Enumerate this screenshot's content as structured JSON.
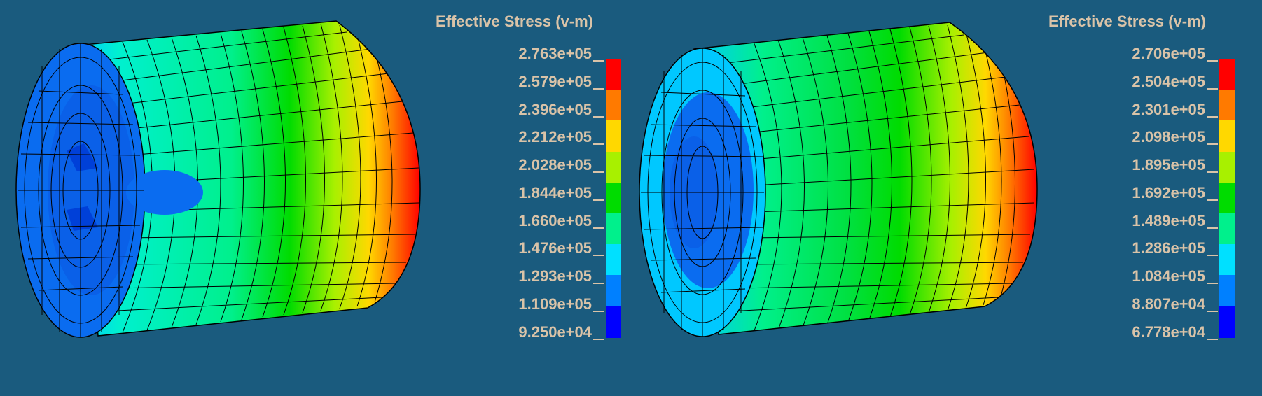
{
  "panels": [
    {
      "legend_title": "Effective Stress (v-m)",
      "ticks": [
        "2.763e+05",
        "2.579e+05",
        "2.396e+05",
        "2.212e+05",
        "2.028e+05",
        "1.844e+05",
        "1.660e+05",
        "1.476e+05",
        "1.293e+05",
        "1.109e+05",
        "9.250e+04"
      ]
    },
    {
      "legend_title": "Effective Stress (v-m)",
      "ticks": [
        "2.706e+05",
        "2.504e+05",
        "2.301e+05",
        "2.098e+05",
        "1.895e+05",
        "1.692e+05",
        "1.489e+05",
        "1.286e+05",
        "1.084e+05",
        "8.807e+04",
        "6.778e+04"
      ]
    }
  ],
  "colorbar": [
    "#ff0000",
    "#ff7a00",
    "#ffd800",
    "#a8f000",
    "#00dc00",
    "#00f08c",
    "#00e0ff",
    "#0080ff",
    "#0000ff"
  ],
  "colors": {
    "background": "#1a5b7e",
    "text": "#d9c3a8",
    "mesh": "#000000"
  }
}
